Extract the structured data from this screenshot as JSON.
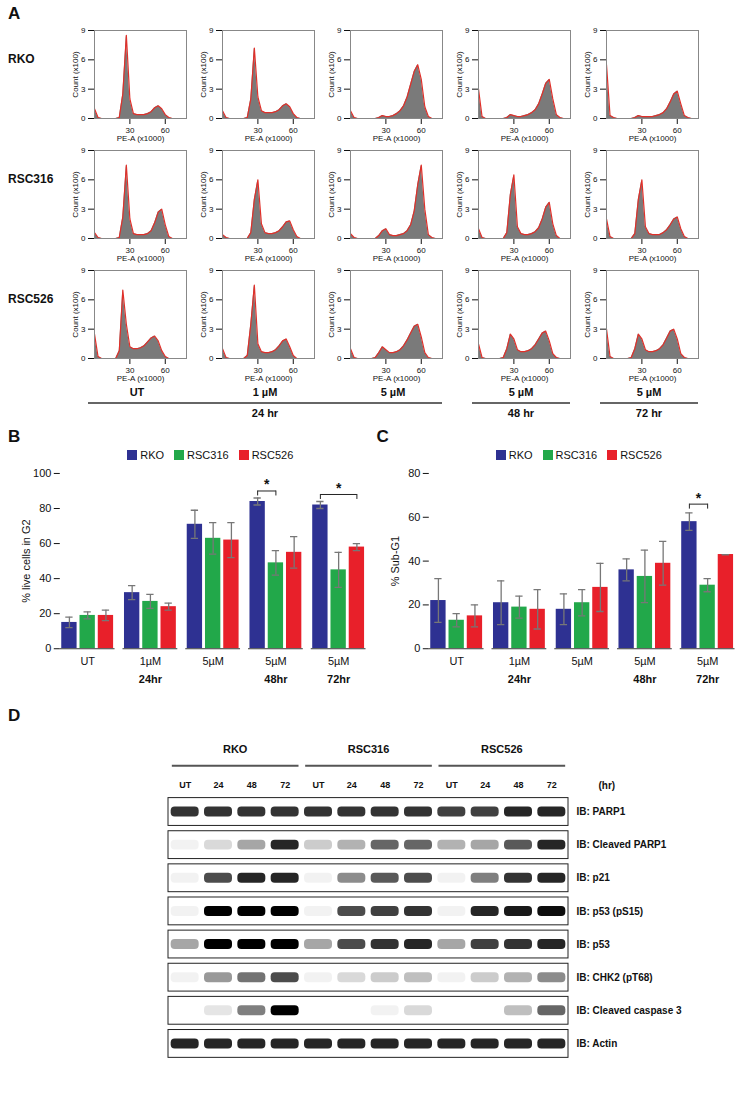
{
  "chart_data": [
    {
      "title": "A",
      "type": "area",
      "color": "#e0302a",
      "x_label": "PE-A (x1000)",
      "y_label": "Count (x100)",
      "xlim": [
        0,
        78
      ],
      "xticks": [
        30,
        60
      ],
      "ylim": [
        0,
        9
      ],
      "yticks": [
        0,
        3,
        6,
        9
      ],
      "x": [
        0,
        3,
        6,
        9,
        12,
        15,
        18,
        21,
        24,
        27,
        30,
        33,
        36,
        39,
        42,
        45,
        48,
        51,
        54,
        57,
        60,
        63,
        66,
        69,
        72,
        75,
        78
      ],
      "categories": [
        "UT",
        "1 µM",
        "5 µM",
        "5 µM",
        "5 µM"
      ],
      "groups": [
        {
          "label": "24 hr",
          "span": 3
        },
        {
          "label": "48 hr",
          "span": 1
        },
        {
          "label": "72 hr",
          "span": 1
        }
      ],
      "series": [
        {
          "name": "RKO",
          "values": [
            [
              1.0,
              0.1,
              0,
              0,
              0,
              0,
              0,
              0.1,
              2.5,
              8.5,
              2.0,
              0.5,
              0.4,
              0.4,
              0.4,
              0.5,
              0.7,
              1.1,
              1.3,
              1.0,
              0.4,
              0.1,
              0,
              0,
              0,
              0,
              0
            ],
            [
              0.8,
              0.1,
              0,
              0,
              0,
              0,
              0,
              0.1,
              2.0,
              7.2,
              2.2,
              0.8,
              0.6,
              0.6,
              0.6,
              0.7,
              0.9,
              1.3,
              1.5,
              1.2,
              0.5,
              0.1,
              0,
              0,
              0,
              0,
              0
            ],
            [
              0.8,
              0.1,
              0,
              0,
              0,
              0,
              0,
              0,
              0.1,
              0.3,
              0.2,
              0.2,
              0.3,
              0.5,
              0.8,
              1.3,
              2.2,
              3.5,
              4.8,
              5.5,
              4.0,
              1.2,
              0.2,
              0,
              0,
              0,
              0
            ],
            [
              3.0,
              0.2,
              0,
              0,
              0,
              0,
              0,
              0,
              0.1,
              0.4,
              0.3,
              0.2,
              0.2,
              0.3,
              0.4,
              0.6,
              0.9,
              1.5,
              2.5,
              3.6,
              4.0,
              2.0,
              0.4,
              0.1,
              0,
              0,
              0
            ],
            [
              5.5,
              0.3,
              0.1,
              0,
              0,
              0,
              0,
              0,
              0.1,
              0.3,
              0.2,
              0.2,
              0.2,
              0.2,
              0.3,
              0.4,
              0.6,
              1.0,
              1.7,
              2.5,
              2.8,
              1.5,
              0.3,
              0.1,
              0,
              0,
              0
            ]
          ]
        },
        {
          "name": "RSC316",
          "values": [
            [
              0.6,
              0.1,
              0,
              0,
              0,
              0,
              0,
              0.1,
              2.2,
              7.5,
              2.0,
              0.5,
              0.4,
              0.4,
              0.4,
              0.5,
              0.8,
              1.6,
              2.7,
              3.0,
              1.4,
              0.2,
              0,
              0,
              0,
              0,
              0
            ],
            [
              0.4,
              0.1,
              0,
              0,
              0,
              0,
              0,
              0,
              0.6,
              4.0,
              6.0,
              1.5,
              0.6,
              0.5,
              0.5,
              0.6,
              0.8,
              1.2,
              1.7,
              1.8,
              0.9,
              0.2,
              0,
              0,
              0,
              0,
              0
            ],
            [
              0.5,
              0.1,
              0,
              0,
              0,
              0,
              0,
              0,
              0.3,
              0.8,
              1.0,
              0.4,
              0.3,
              0.3,
              0.4,
              0.5,
              0.8,
              1.4,
              2.8,
              5.5,
              7.5,
              3.0,
              0.4,
              0.1,
              0,
              0,
              0
            ],
            [
              1.0,
              0.1,
              0,
              0,
              0,
              0,
              0,
              0,
              0.6,
              4.5,
              6.5,
              1.2,
              0.5,
              0.4,
              0.4,
              0.5,
              0.7,
              1.1,
              2.0,
              3.2,
              3.7,
              1.5,
              0.3,
              0,
              0,
              0,
              0
            ],
            [
              2.0,
              0.2,
              0,
              0,
              0,
              0,
              0,
              0,
              0.5,
              4.0,
              6.0,
              1.2,
              0.5,
              0.4,
              0.4,
              0.4,
              0.6,
              0.9,
              1.4,
              2.0,
              2.2,
              1.0,
              0.2,
              0,
              0,
              0,
              0
            ]
          ]
        },
        {
          "name": "RSC526",
          "values": [
            [
              2.5,
              0.2,
              0,
              0,
              0,
              0,
              0,
              0.8,
              7.0,
              3.5,
              1.2,
              1.0,
              1.0,
              1.1,
              1.3,
              1.7,
              2.1,
              2.3,
              1.8,
              0.8,
              0.2,
              0,
              0,
              0,
              0,
              0,
              0
            ],
            [
              1.0,
              0.1,
              0,
              0,
              0,
              0,
              0,
              0.3,
              3.5,
              7.5,
              1.5,
              0.7,
              0.6,
              0.6,
              0.7,
              0.9,
              1.3,
              1.8,
              2.0,
              1.2,
              0.3,
              0,
              0,
              0,
              0,
              0,
              0
            ],
            [
              1.0,
              0.1,
              0,
              0,
              0,
              0,
              0,
              0.1,
              0.6,
              1.2,
              0.9,
              0.6,
              0.6,
              0.7,
              0.9,
              1.3,
              1.9,
              2.6,
              3.3,
              3.5,
              2.2,
              0.6,
              0.1,
              0,
              0,
              0,
              0
            ],
            [
              1.5,
              0.1,
              0,
              0,
              0,
              0,
              0,
              0.1,
              1.0,
              2.5,
              2.0,
              0.9,
              0.7,
              0.7,
              0.8,
              1.0,
              1.4,
              2.0,
              2.6,
              2.8,
              1.8,
              0.5,
              0.1,
              0,
              0,
              0,
              0
            ],
            [
              3.0,
              0.2,
              0,
              0,
              0,
              0,
              0,
              0.1,
              1.0,
              2.5,
              2.0,
              0.9,
              0.7,
              0.7,
              0.8,
              1.0,
              1.4,
              2.1,
              2.8,
              3.0,
              2.0,
              0.5,
              0.1,
              0,
              0,
              0,
              0
            ]
          ]
        }
      ]
    },
    {
      "title": "B",
      "type": "bar",
      "y_label": "% live cells in G2",
      "legend": "top",
      "categories": [
        "UT",
        "1µM",
        "5µM",
        "5µM",
        "5µM"
      ],
      "groups": [
        {
          "label": "24hr",
          "span": 3
        },
        {
          "label": "48hr",
          "span": 1
        },
        {
          "label": "72hr",
          "span": 1
        }
      ],
      "ylim": [
        0,
        100
      ],
      "yticks": [
        0,
        20,
        40,
        60,
        80,
        100
      ],
      "series": [
        {
          "name": "RKO",
          "color": "#2e3192",
          "values": [
            15,
            32,
            71,
            84,
            82
          ],
          "errors": [
            3,
            4,
            8,
            2,
            2
          ]
        },
        {
          "name": "RSC316",
          "color": "#22a84a",
          "values": [
            19,
            27,
            63,
            49,
            45
          ],
          "errors": [
            2,
            4,
            9,
            7,
            10
          ]
        },
        {
          "name": "RSC526",
          "color": "#e8202a",
          "values": [
            19,
            24,
            62,
            55,
            58
          ],
          "errors": [
            3,
            2,
            10,
            9,
            2
          ]
        }
      ],
      "annotations": [
        {
          "text": "*",
          "category": 3,
          "from": "RKO",
          "to": "RSC316",
          "y": 90
        },
        {
          "text": "*",
          "category": 4,
          "from": "RKO",
          "to": "RSC526",
          "y": 88
        }
      ]
    },
    {
      "title": "C",
      "type": "bar",
      "y_label": "% Sub-G1",
      "legend": "top",
      "categories": [
        "UT",
        "1µM",
        "5µM",
        "5µM",
        "5µM"
      ],
      "groups": [
        {
          "label": "24hr",
          "span": 3
        },
        {
          "label": "48hr",
          "span": 1
        },
        {
          "label": "72hr",
          "span": 1
        }
      ],
      "ylim": [
        0,
        80
      ],
      "yticks": [
        0,
        20,
        40,
        60,
        80
      ],
      "series": [
        {
          "name": "RKO",
          "color": "#2e3192",
          "values": [
            22,
            21,
            18,
            36,
            58
          ],
          "errors": [
            10,
            10,
            7,
            5,
            4
          ]
        },
        {
          "name": "RSC316",
          "color": "#22a84a",
          "values": [
            13,
            19,
            21,
            33,
            29
          ],
          "errors": [
            3,
            5,
            6,
            12,
            3
          ]
        },
        {
          "name": "RSC526",
          "color": "#e8202a",
          "values": [
            15,
            18,
            28,
            39,
            43
          ],
          "errors": [
            5,
            9,
            11,
            10,
            0
          ]
        }
      ],
      "annotations": [
        {
          "text": "*",
          "category": 4,
          "from": "RKO",
          "to": "RSC316",
          "y": 66
        }
      ]
    },
    {
      "title": "D",
      "type": "blot",
      "groups": [
        {
          "label": "RKO",
          "span": 4
        },
        {
          "label": "RSC316",
          "span": 4
        },
        {
          "label": "RSC526",
          "span": 4
        }
      ],
      "categories": [
        "UT",
        "24",
        "48",
        "72",
        "UT",
        "24",
        "48",
        "72",
        "UT",
        "24",
        "48",
        "72"
      ],
      "unit_label": "(hr)",
      "intensity_range": [
        0,
        1
      ],
      "rows": [
        {
          "label": "IB: PARP1",
          "intensity": [
            0.8,
            0.8,
            0.8,
            0.8,
            0.8,
            0.8,
            0.8,
            0.8,
            0.75,
            0.75,
            0.85,
            0.85
          ]
        },
        {
          "label": "IB: Cleaved PARP1",
          "intensity": [
            0.05,
            0.15,
            0.35,
            0.85,
            0.2,
            0.3,
            0.6,
            0.6,
            0.3,
            0.35,
            0.65,
            0.85
          ]
        },
        {
          "label": "IB: p21",
          "intensity": [
            0.05,
            0.7,
            0.85,
            0.85,
            0.05,
            0.45,
            0.65,
            0.7,
            0.05,
            0.5,
            0.8,
            0.85
          ]
        },
        {
          "label": "IB: p53 (pS15)",
          "intensity": [
            0.05,
            1,
            1,
            1,
            0.05,
            0.7,
            0.75,
            0.8,
            0.05,
            0.85,
            0.9,
            0.95
          ]
        },
        {
          "label": "IB: p53",
          "intensity": [
            0.35,
            1,
            1,
            1,
            0.35,
            0.7,
            0.8,
            0.85,
            0.35,
            0.75,
            0.8,
            0.85
          ]
        },
        {
          "label": "IB: CHK2 (pT68)",
          "intensity": [
            0.05,
            0.4,
            0.55,
            0.7,
            0.05,
            0.15,
            0.2,
            0.25,
            0.05,
            0.2,
            0.3,
            0.45
          ]
        },
        {
          "label": "IB: Cleaved caspase 3",
          "intensity": [
            0,
            0.1,
            0.5,
            1,
            0,
            0,
            0.05,
            0.15,
            0,
            0,
            0.25,
            0.6
          ]
        },
        {
          "label": "IB: Actin",
          "intensity": [
            0.85,
            0.85,
            0.85,
            0.85,
            0.85,
            0.85,
            0.85,
            0.85,
            0.85,
            0.85,
            0.85,
            0.85
          ]
        }
      ]
    }
  ]
}
